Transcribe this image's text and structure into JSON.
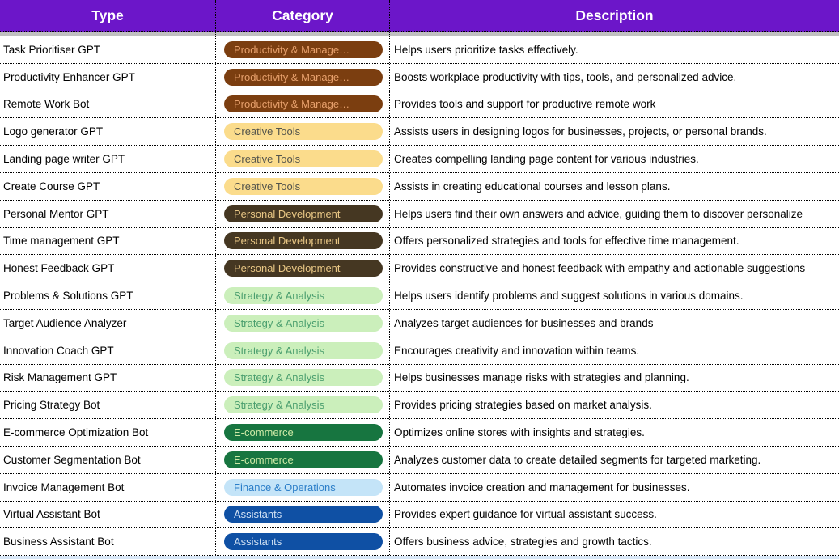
{
  "header": {
    "columns": [
      "Type",
      "Category",
      "Description"
    ],
    "bg": "#6C16C9",
    "fg": "#FFFFFF"
  },
  "colors": {
    "header_gap_gray": "#C0C0C0",
    "row_bg": "#FFFFFF",
    "grid_dots": "#000000",
    "partial_bottom_row": "#D9E8F8"
  },
  "category_styles": {
    "productivity_management": {
      "bg": "#7B3E10",
      "fg": "#E7A06C"
    },
    "creative_tools": {
      "bg": "#FBDC8C",
      "fg": "#53544C"
    },
    "personal_development": {
      "bg": "#453722",
      "fg": "#E9C785"
    },
    "strategy_analysis": {
      "bg": "#CBEFBB",
      "fg": "#4A9E6E"
    },
    "e_commerce": {
      "bg": "#177540",
      "fg": "#CDE9A6"
    },
    "finance_operations": {
      "bg": "#C4E4F8",
      "fg": "#2A7DC8"
    },
    "assistants": {
      "bg": "#0F50A4",
      "fg": "#D2E2F4"
    }
  },
  "rows": [
    {
      "type": "Task Prioritiser GPT",
      "category_label": "Productivity & Manage…",
      "category_key": "productivity_management",
      "description": "Helps users prioritize tasks effectively."
    },
    {
      "type": "Productivity Enhancer GPT",
      "category_label": "Productivity & Manage…",
      "category_key": "productivity_management",
      "description": "Boosts workplace productivity with tips, tools, and personalized advice."
    },
    {
      "type": "Remote Work Bot",
      "category_label": "Productivity & Manage…",
      "category_key": "productivity_management",
      "description": "Provides tools and support for productive remote work"
    },
    {
      "type": "Logo generator GPT",
      "category_label": "Creative Tools",
      "category_key": "creative_tools",
      "description": "Assists users in designing logos for businesses, projects, or personal brands."
    },
    {
      "type": "Landing page writer GPT",
      "category_label": "Creative Tools",
      "category_key": "creative_tools",
      "description": "Creates compelling landing page content for various industries."
    },
    {
      "type": "Create Course GPT",
      "category_label": "Creative Tools",
      "category_key": "creative_tools",
      "description": "Assists in creating educational courses and lesson plans."
    },
    {
      "type": "Personal Mentor GPT",
      "category_label": "Personal Development",
      "category_key": "personal_development",
      "description": "Helps users find their own answers and advice, guiding them to discover personalize"
    },
    {
      "type": "Time management GPT",
      "category_label": "Personal Development",
      "category_key": "personal_development",
      "description": "Offers personalized strategies and tools for effective time management."
    },
    {
      "type": "Honest Feedback GPT",
      "category_label": "Personal Development",
      "category_key": "personal_development",
      "description": "Provides constructive and honest feedback with empathy and actionable suggestions"
    },
    {
      "type": "Problems & Solutions GPT",
      "category_label": "Strategy & Analysis",
      "category_key": "strategy_analysis",
      "description": "Helps users identify problems and suggest solutions in various domains."
    },
    {
      "type": "Target Audience Analyzer",
      "category_label": "Strategy & Analysis",
      "category_key": "strategy_analysis",
      "description": "Analyzes target audiences for businesses and brands"
    },
    {
      "type": "Innovation Coach GPT",
      "category_label": "Strategy & Analysis",
      "category_key": "strategy_analysis",
      "description": "Encourages creativity and innovation within teams."
    },
    {
      "type": "Risk Management GPT",
      "category_label": "Strategy & Analysis",
      "category_key": "strategy_analysis",
      "description": "Helps businesses manage risks with strategies and planning."
    },
    {
      "type": "Pricing Strategy Bot",
      "category_label": "Strategy & Analysis",
      "category_key": "strategy_analysis",
      "description": "Provides pricing strategies based on market analysis."
    },
    {
      "type": "E-commerce Optimization Bot",
      "category_label": "E-commerce",
      "category_key": "e_commerce",
      "description": "Optimizes online stores with insights and strategies."
    },
    {
      "type": "Customer Segmentation Bot",
      "category_label": "E-commerce",
      "category_key": "e_commerce",
      "description": "Analyzes customer data to create detailed segments for targeted marketing."
    },
    {
      "type": "Invoice Management Bot",
      "category_label": "Finance & Operations",
      "category_key": "finance_operations",
      "description": "Automates invoice creation and management for businesses."
    },
    {
      "type": "Virtual Assistant Bot",
      "category_label": "Assistants",
      "category_key": "assistants",
      "description": "Provides expert guidance for virtual assistant success."
    },
    {
      "type": "Business Assistant Bot",
      "category_label": "Assistants",
      "category_key": "assistants",
      "description": "Offers business advice, strategies and growth tactics."
    }
  ]
}
